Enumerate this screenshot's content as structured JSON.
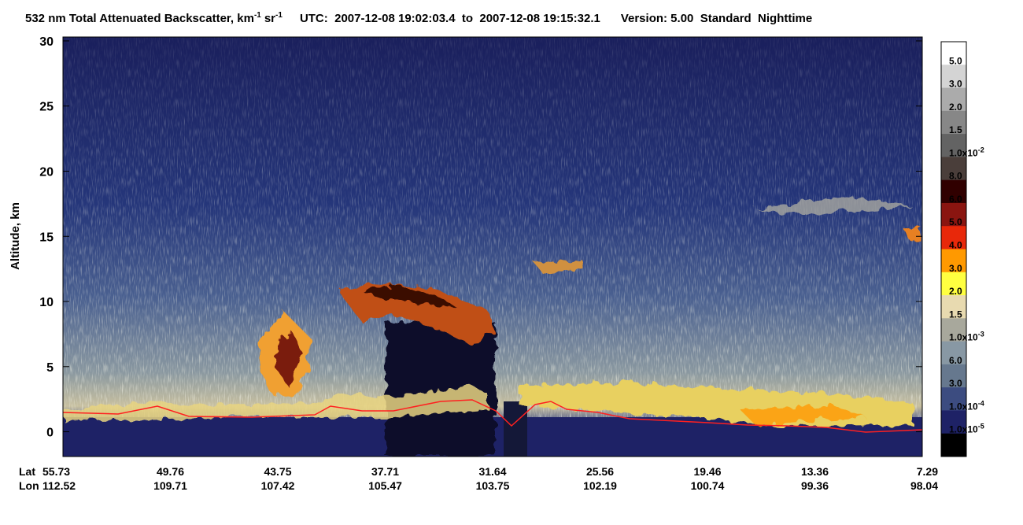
{
  "chart_data": {
    "type": "curtain",
    "title": {
      "text": "532 nm Total Attenuated Backscatter, km",
      "sup1": "-1",
      "unit2": "sr",
      "sup2": "-1",
      "utc": "UTC:  2007-12-08 19:02:03.4  to  2007-12-08 19:15:32.1",
      "version": "Version: 5.00  Standard  Nighttime"
    },
    "y_label": "Altitude, km",
    "ylim": [
      -1.9,
      30.3
    ],
    "yticks": [
      0,
      5,
      10,
      15,
      20,
      25,
      30
    ],
    "x_row_labels": [
      "Lat",
      "Lon"
    ],
    "lat": [
      55.73,
      49.76,
      43.75,
      37.71,
      31.64,
      25.56,
      19.46,
      13.36,
      7.29
    ],
    "lon": [
      112.52,
      109.71,
      107.42,
      105.47,
      103.75,
      102.19,
      100.74,
      99.36,
      98.04
    ],
    "colorbar": {
      "colors": [
        "#ffffff",
        "#d4d4d4",
        "#ababab",
        "#878787",
        "#636363",
        "#4a3e3a",
        "#300000",
        "#8a1510",
        "#e8280a",
        "#ff9900",
        "#ffff40",
        "#e8dab0",
        "#a8a89c",
        "#8898a4",
        "#66788e",
        "#3c4c80",
        "#1e2266",
        "#000000"
      ],
      "labels": [
        "5.0",
        "3.0",
        "2.0",
        "1.5",
        {
          "text": "1.0x10",
          "sup": "-2"
        },
        "8.0",
        "6.0",
        "5.0",
        "4.0",
        "3.0",
        "2.0",
        "1.5",
        {
          "text": "1.0x10",
          "sup": "-3"
        },
        "6.0",
        "3.0",
        {
          "text": "1.0x10",
          "sup": "-4"
        },
        {
          "text": "1.0x10",
          "sup": "-5"
        }
      ]
    }
  }
}
